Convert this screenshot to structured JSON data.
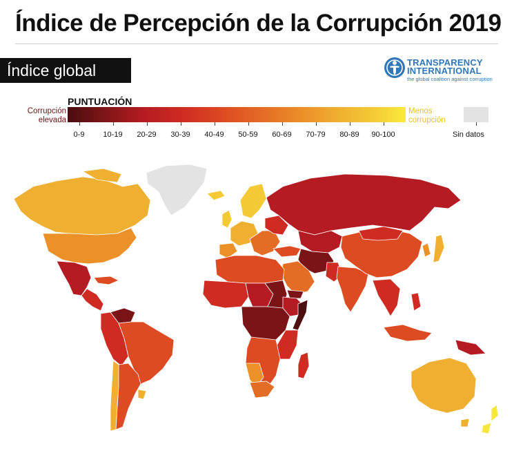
{
  "title": "Índice de Percepción de la Corrupción 2019",
  "section_label": "Índice global",
  "logo": {
    "line1": "TRANSPARENCY",
    "line2": "INTERNATIONAL",
    "tagline": "the global coalition against corruption"
  },
  "legend": {
    "title": "PUNTUACIÓN",
    "low_label": "Corrupción elevada",
    "high_label": "Menos corrupción",
    "bins": [
      {
        "label": "0-9",
        "color": "#4d0f10"
      },
      {
        "label": "10-19",
        "color": "#7a1416"
      },
      {
        "label": "20-29",
        "color": "#b41b22"
      },
      {
        "label": "30-39",
        "color": "#cf2b22"
      },
      {
        "label": "40-49",
        "color": "#dd4b22"
      },
      {
        "label": "50-59",
        "color": "#e46d26"
      },
      {
        "label": "60-69",
        "color": "#eb9128"
      },
      {
        "label": "70-79",
        "color": "#efaf30"
      },
      {
        "label": "80-89",
        "color": "#f3c935"
      },
      {
        "label": "90-100",
        "color": "#f7e73a"
      }
    ],
    "no_data": {
      "label": "Sin datos",
      "color": "#e3e3e3"
    }
  },
  "colors": {
    "water": "#ffffff",
    "border": "#ffffff",
    "logo_blue": "#2f77b8"
  }
}
